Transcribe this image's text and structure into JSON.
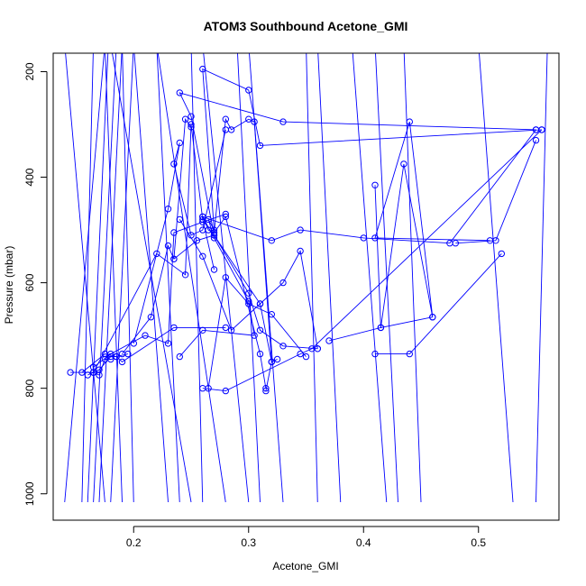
{
  "chart_data": {
    "type": "line",
    "title": "ATOM3 Southbound Acetone_GMI",
    "xlabel": "Acetone_GMI",
    "ylabel": "Pressure (mbar)",
    "xlim": [
      0.13,
      0.57
    ],
    "ylim": [
      1050,
      165
    ],
    "y_reversed": true,
    "x_ticks": [
      0.2,
      0.3,
      0.4,
      0.5
    ],
    "x_tick_labels": [
      "0.2",
      "0.3",
      "0.4",
      "0.5"
    ],
    "y_ticks": [
      200,
      400,
      600,
      800,
      1000
    ],
    "y_tick_labels": [
      "200",
      "400",
      "600",
      "800",
      "1000"
    ],
    "series_color": "#0000ff",
    "marker": "open-circle",
    "grid": false,
    "series": [
      {
        "x": [
          0.55,
          0.33,
          0.24,
          0.25,
          0.27,
          0.3,
          0.31,
          0.33,
          0.36
        ],
        "y": [
          310,
          295,
          240,
          285,
          510,
          620,
          690,
          720,
          725
        ]
      },
      {
        "x": [
          0.55,
          0.475,
          0.4,
          0.345,
          0.32,
          0.26,
          0.3,
          0.305,
          0.26,
          0.24
        ],
        "y": [
          310,
          525,
          515,
          500,
          520,
          475,
          635,
          700,
          690,
          740
        ]
      },
      {
        "x": [
          0.51,
          0.41,
          0.44,
          0.46,
          0.435,
          0.415,
          0.37
        ],
        "y": [
          520,
          515,
          295,
          665,
          375,
          685,
          710
        ]
      },
      {
        "x": [
          0.52,
          0.44,
          0.41
        ],
        "y": [
          545,
          735,
          735
        ]
      },
      {
        "x": [
          0.555,
          0.355,
          0.345,
          0.28,
          0.26
        ],
        "y": [
          310,
          725,
          735,
          805,
          800
        ]
      },
      {
        "x": [
          0.555,
          0.31,
          0.3,
          0.26,
          0.27,
          0.265,
          0.27
        ],
        "y": [
          310,
          340,
          235,
          195,
          500,
          480,
          515
        ]
      },
      {
        "x": [
          0.41,
          0.415,
          0.46
        ],
        "y": [
          415,
          685,
          665
        ]
      },
      {
        "x": [
          0.55,
          0.515,
          0.48
        ],
        "y": [
          330,
          520,
          525
        ]
      },
      {
        "x": [
          0.27,
          0.28,
          0.285,
          0.3,
          0.305,
          0.32,
          0.315
        ],
        "y": [
          505,
          290,
          310,
          290,
          295,
          750,
          805
        ]
      },
      {
        "x": [
          0.2,
          0.23,
          0.24,
          0.235,
          0.25,
          0.26,
          0.28
        ],
        "y": [
          715,
          460,
          335,
          375,
          510,
          500,
          310
        ]
      },
      {
        "x": [
          0.26,
          0.265,
          0.27,
          0.28,
          0.31,
          0.315
        ],
        "y": [
          475,
          500,
          505,
          475,
          735,
          800
        ]
      },
      {
        "x": [
          0.235,
          0.255,
          0.27,
          0.31,
          0.32,
          0.325
        ],
        "y": [
          555,
          520,
          510,
          640,
          750,
          745
        ]
      },
      {
        "x": [
          0.165,
          0.22,
          0.245,
          0.25,
          0.26,
          0.27
        ],
        "y": [
          770,
          545,
          585,
          300,
          480,
          575
        ]
      },
      {
        "x": [
          0.19,
          0.215,
          0.23,
          0.235,
          0.245,
          0.25
        ],
        "y": [
          735,
          665,
          530,
          555,
          290,
          305
        ]
      },
      {
        "x": [
          0.145,
          0.165,
          0.17,
          0.175,
          0.18
        ],
        "y": [
          770,
          770,
          775,
          745,
          745
        ]
      },
      {
        "x": [
          0.16,
          0.165,
          0.17,
          0.18,
          0.185,
          0.195
        ],
        "y": [
          775,
          770,
          765,
          740,
          740,
          735
        ]
      },
      {
        "x": [
          0.155,
          0.175,
          0.185,
          0.19,
          0.235,
          0.28
        ],
        "y": [
          770,
          735,
          740,
          750,
          685,
          685
        ]
      },
      {
        "x": [
          0.165,
          0.18,
          0.21,
          0.23,
          0.235,
          0.26,
          0.28
        ],
        "y": [
          760,
          735,
          700,
          715,
          505,
          485,
          470
        ]
      },
      {
        "x": [
          0.35,
          0.32,
          0.3,
          0.28,
          0.265
        ],
        "y": [
          740,
          660,
          640,
          590,
          800
        ]
      },
      {
        "x": [
          0.24,
          0.26,
          0.285,
          0.31,
          0.33,
          0.345,
          0.36
        ],
        "y": [
          480,
          550,
          690,
          640,
          600,
          540,
          725
        ]
      }
    ],
    "off_top_segments": [
      {
        "x": [
          0.14,
          0.175
        ]
      },
      {
        "x": [
          0.155,
          0.165
        ]
      },
      {
        "x": [
          0.16,
          0.178
        ]
      },
      {
        "x": [
          0.165,
          0.185
        ]
      },
      {
        "x": [
          0.17,
          0.19
        ]
      },
      {
        "x": [
          0.175,
          0.14
        ]
      },
      {
        "x": [
          0.18,
          0.2
        ]
      },
      {
        "x": [
          0.19,
          0.175
        ]
      },
      {
        "x": [
          0.2,
          0.19
        ]
      },
      {
        "x": [
          0.23,
          0.2
        ]
      },
      {
        "x": [
          0.24,
          0.22
        ]
      },
      {
        "x": [
          0.25,
          0.18
        ]
      },
      {
        "x": [
          0.26,
          0.25
        ]
      },
      {
        "x": [
          0.28,
          0.22
        ]
      },
      {
        "x": [
          0.3,
          0.26
        ]
      },
      {
        "x": [
          0.31,
          0.29
        ]
      },
      {
        "x": [
          0.33,
          0.3
        ]
      },
      {
        "x": [
          0.36,
          0.35
        ]
      },
      {
        "x": [
          0.38,
          0.36
        ]
      },
      {
        "x": [
          0.42,
          0.39
        ]
      },
      {
        "x": [
          0.45,
          0.435
        ]
      },
      {
        "x": [
          0.43,
          0.41
        ]
      },
      {
        "x": [
          0.55,
          0.56
        ]
      },
      {
        "x": [
          0.53,
          0.5
        ]
      }
    ]
  }
}
